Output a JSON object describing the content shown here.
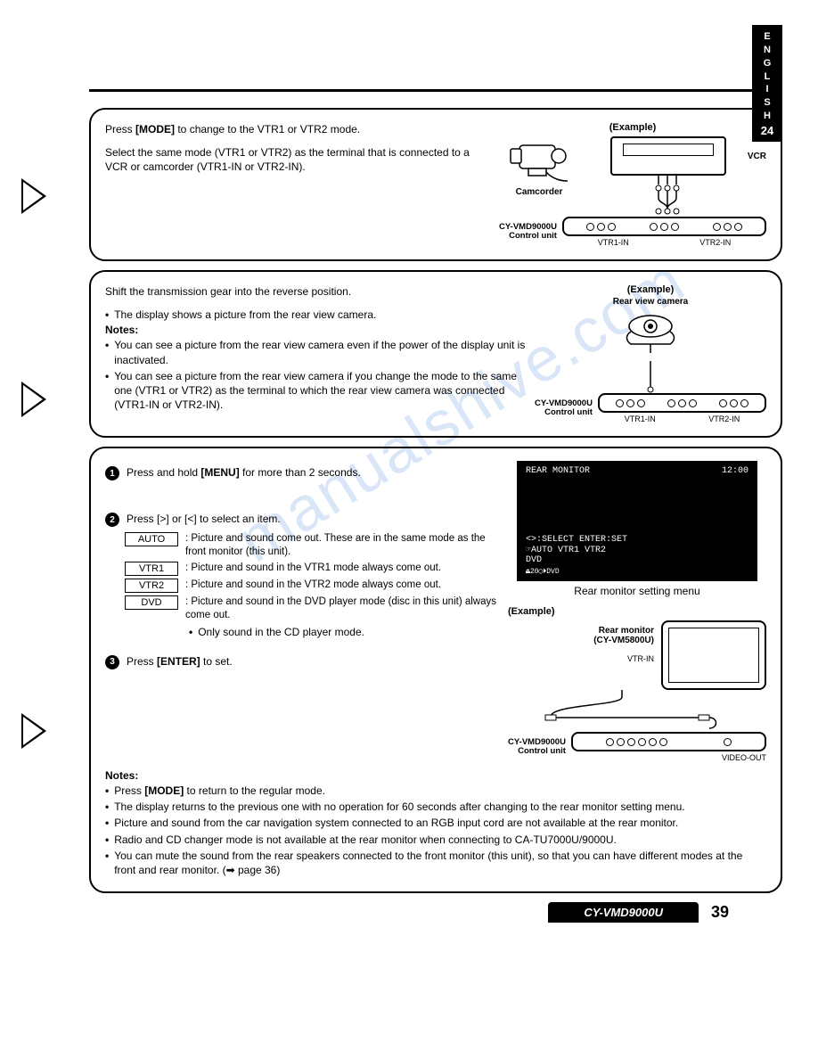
{
  "tab": {
    "lang": "ENGLISH",
    "num": "24"
  },
  "panel1": {
    "p1a": "Press ",
    "p1b": "[MODE]",
    "p1c": " to change to the VTR1 or VTR2 mode.",
    "p2": "Select the same mode (VTR1 or VTR2) as the terminal that is connected to a VCR or camcorder (VTR1-IN or VTR2-IN).",
    "example": "(Example)",
    "cam": "Camcorder",
    "vcr": "VCR",
    "unit": "CY-VMD9000U",
    "unit2": "Control unit",
    "port1": "VTR1-IN",
    "port2": "VTR2-IN"
  },
  "panel2": {
    "p1": "Shift the transmission gear into the reverse position.",
    "b1": "The display shows a picture from the rear view camera.",
    "notes": "Notes:",
    "b2": "You can see a picture from the rear view camera even if the power of the display unit is inactivated.",
    "b3": "You can see a picture from the rear view camera if you change the mode to the same one (VTR1 or VTR2) as the terminal to which the rear view camera was connected (VTR1-IN or VTR2-IN).",
    "example": "(Example)",
    "rvc": "Rear view camera",
    "unit": "CY-VMD9000U",
    "unit2": "Control unit",
    "port1": "VTR1-IN",
    "port2": "VTR2-IN"
  },
  "panel3": {
    "s1a": "Press and hold ",
    "s1b": "[MENU]",
    "s1c": " for more than 2 seconds.",
    "s2": "Press [>] or [<] to select an item.",
    "opts": [
      {
        "label": "AUTO",
        "desc": "Picture and sound come out. These are in the same mode as the front monitor (this unit)."
      },
      {
        "label": "VTR1",
        "desc": "Picture and sound in the VTR1 mode always come out."
      },
      {
        "label": "VTR2",
        "desc": "Picture and sound in the VTR2 mode always come out."
      },
      {
        "label": "DVD",
        "desc": "Picture and sound in the DVD player mode (disc in this unit) always come out."
      }
    ],
    "opt_sub": "Only sound in the CD player mode.",
    "s3a": "Press ",
    "s3b": "[ENTER]",
    "s3c": " to set.",
    "notes": "Notes:",
    "n1a": "Press ",
    "n1b": "[MODE]",
    "n1c": " to return to the regular mode.",
    "n2": "The display returns to the previous one with no operation for 60 seconds after changing to the rear monitor setting menu.",
    "n3": "Picture and sound from the car navigation system connected to an RGB input cord are not available at the rear monitor.",
    "n4": "Radio and CD changer mode is not available at the rear monitor when connecting to CA-TU7000U/9000U.",
    "n5": "You can mute the sound from the rear speakers connected to the front monitor (this unit), so that you can have different modes at the front and rear monitor. (➡ page 36)",
    "screen": {
      "title": "REAR MONITOR",
      "time": "12:00",
      "l1": "<>:SELECT   ENTER:SET",
      "l2": "☞AUTO   VTR1   VTR2",
      "l3": "  DVD",
      "l4": "⏏20◯⏵DVD"
    },
    "menu_caption": "Rear monitor setting menu",
    "example": "(Example)",
    "rm1": "Rear monitor",
    "rm2": "(CY-VM5800U)",
    "vtrin": "VTR-IN",
    "unit": "CY-VMD9000U",
    "unit2": "Control unit",
    "vout": "VIDEO-OUT"
  },
  "footer": {
    "model": "CY-VMD9000U",
    "page": "39"
  },
  "watermark": "manualshive.com",
  "colors": {
    "fg": "#000000",
    "bg": "#ffffff",
    "wm": "rgba(80,140,220,0.22)"
  }
}
